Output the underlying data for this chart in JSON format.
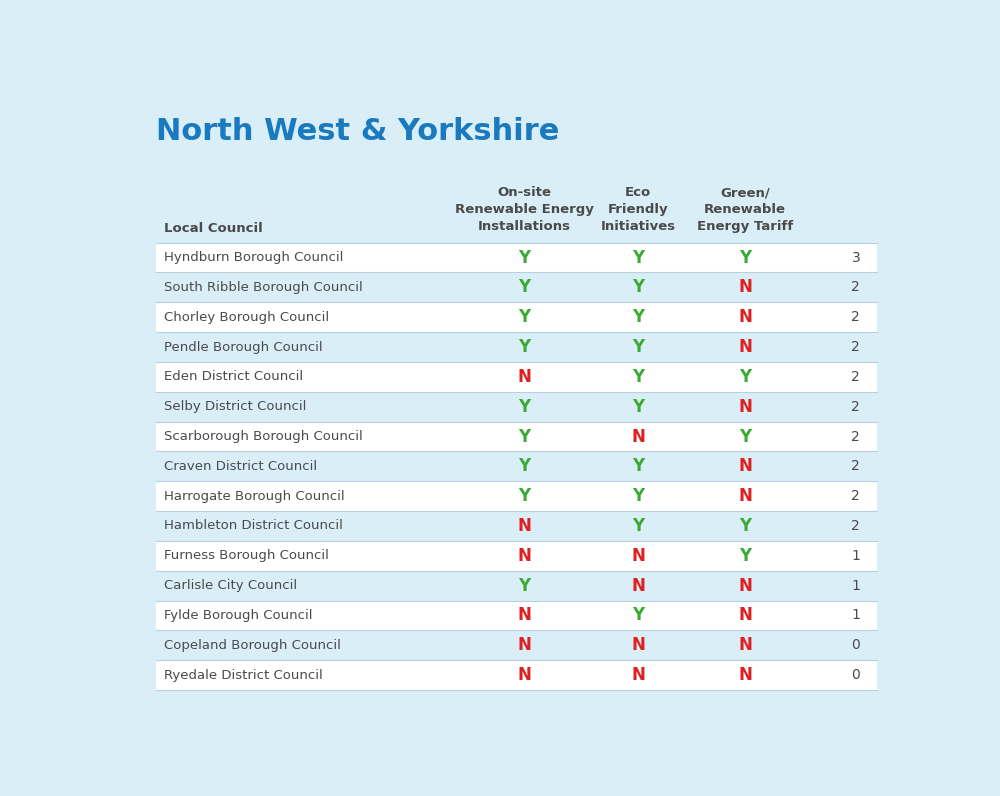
{
  "title": "North West & Yorkshire",
  "title_color": "#1a7abf",
  "background_color": "#daeef8",
  "table_bg_color": "#ffffff",
  "row_alt_color": "#daeef8",
  "councils": [
    "Hyndburn Borough Council",
    "South Ribble Borough Council",
    "Chorley Borough Council",
    "Pendle Borough Council",
    "Eden District Council",
    "Selby District Council",
    "Scarborough Borough Council",
    "Craven District Council",
    "Harrogate Borough Council",
    "Hambleton District Council",
    "Furness Borough Council",
    "Carlisle City Council",
    "Fylde Borough Council",
    "Copeland Borough Council",
    "Ryedale District Council"
  ],
  "col1": [
    "Y",
    "Y",
    "Y",
    "Y",
    "N",
    "Y",
    "Y",
    "Y",
    "Y",
    "N",
    "N",
    "Y",
    "N",
    "N",
    "N"
  ],
  "col2": [
    "Y",
    "Y",
    "Y",
    "Y",
    "Y",
    "Y",
    "N",
    "Y",
    "Y",
    "Y",
    "N",
    "N",
    "Y",
    "N",
    "N"
  ],
  "col3": [
    "Y",
    "N",
    "N",
    "N",
    "Y",
    "N",
    "Y",
    "N",
    "N",
    "Y",
    "Y",
    "N",
    "N",
    "N",
    "N"
  ],
  "score": [
    3,
    2,
    2,
    2,
    2,
    2,
    2,
    2,
    2,
    2,
    1,
    1,
    1,
    0,
    0
  ],
  "green_color": "#3aaa35",
  "red_color": "#e02020",
  "text_color": "#4a4a4a",
  "header_text_color": "#4a4a4a",
  "score_color": "#4a4a4a",
  "separator_color": "#b8cfe0",
  "header_col1": "On-site\nRenewable Energy\nInstallations",
  "header_col2": "Eco\nFriendly\nInitiatives",
  "header_col3": "Green/\nRenewable\nEnergy Tariff",
  "header_council": "Local Council"
}
